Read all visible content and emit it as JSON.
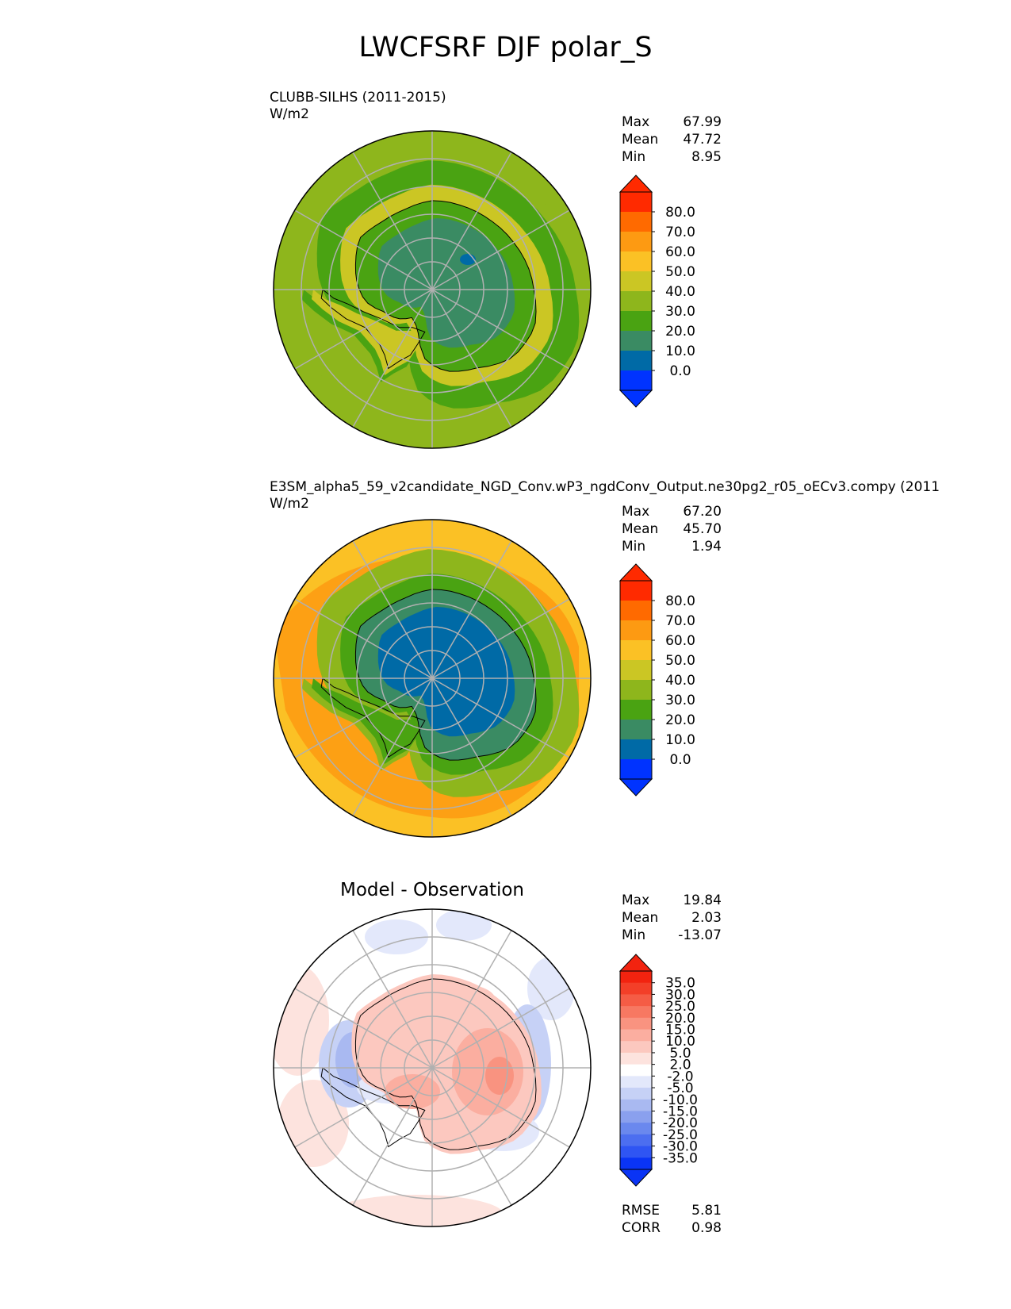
{
  "figure_title": "LWCFSRF DJF polar_S",
  "colors": {
    "abs_levels": [
      "#0033ff",
      "#006aa6",
      "#3a8b63",
      "#4aa312",
      "#8eb61c",
      "#cbc624",
      "#fbc125",
      "#fd9a12",
      "#ff6a00",
      "#ff2a00"
    ],
    "diff_levels": [
      "#0a34f5",
      "#2f55f3",
      "#4c6ef0",
      "#6a88ee",
      "#8aa0ee",
      "#a9b9f1",
      "#c6d1f6",
      "#e3e8fb",
      "#ffffff",
      "#fde3de",
      "#fcc8bf",
      "#fbaea0",
      "#f99380",
      "#f77862",
      "#f55c45",
      "#f33f28",
      "#f2230f"
    ],
    "coast": "#000000",
    "grid": "#b0b0b0"
  },
  "panels": [
    {
      "id": "test",
      "name_line": "CLUBB-SILHS (2011-2015)",
      "units": "W/m2",
      "stats": [
        {
          "label": "Max",
          "value": "67.99"
        },
        {
          "label": "Mean",
          "value": "47.72"
        },
        {
          "label": "Min",
          "value": "8.95"
        }
      ],
      "colorbar_ticks": [
        "80.0",
        "70.0",
        "60.0",
        "50.0",
        "40.0",
        "30.0",
        "20.0",
        "10.0",
        "0.0"
      ],
      "zones": {
        "outer": 4,
        "mid": 4,
        "ring": 3,
        "coast": 5,
        "land": 3,
        "interior": 2,
        "pocket": 1
      }
    },
    {
      "id": "ref",
      "name_line": "E3SM_alpha5_59_v2candidate_NGD_Conv.wP3_ngdConv_Output.ne30pg2_r05_oECv3.compy (2011",
      "units": "W/m2",
      "stats": [
        {
          "label": "Max",
          "value": "67.20"
        },
        {
          "label": "Mean",
          "value": "45.70"
        },
        {
          "label": "Min",
          "value": "1.94"
        }
      ],
      "colorbar_ticks": [
        "80.0",
        "70.0",
        "60.0",
        "50.0",
        "40.0",
        "30.0",
        "20.0",
        "10.0",
        "0.0"
      ],
      "zones": {
        "outer": 6,
        "mid": 7,
        "ring": 4,
        "coast": 3,
        "land": 2,
        "interior": 1,
        "pocket": 1
      }
    },
    {
      "id": "diff",
      "centered_title": "Model - Observation",
      "stats": [
        {
          "label": "Max",
          "value": "19.84"
        },
        {
          "label": "Mean",
          "value": "2.03"
        },
        {
          "label": "Min",
          "value": "-13.07"
        }
      ],
      "colorbar_ticks": [
        "35.0",
        "30.0",
        "25.0",
        "20.0",
        "15.0",
        "10.0",
        "5.0",
        "2.0",
        "-2.0",
        "-5.0",
        "-10.0",
        "-15.0",
        "-20.0",
        "-25.0",
        "-30.0",
        "-35.0"
      ],
      "metrics": [
        {
          "label": "RMSE",
          "value": "5.81"
        },
        {
          "label": "CORR",
          "value": "0.98"
        }
      ]
    }
  ]
}
